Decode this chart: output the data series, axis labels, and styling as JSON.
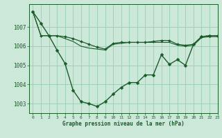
{
  "background_color": "#cce8d8",
  "grid_color": "#99ccb4",
  "line_color": "#1a5c2a",
  "xlabel": "Graphe pression niveau de la mer (hPa)",
  "xlim": [
    -0.5,
    23
  ],
  "ylim": [
    1002.5,
    1008.2
  ],
  "yticks": [
    1003,
    1004,
    1005,
    1006,
    1007
  ],
  "xticks": [
    0,
    1,
    2,
    3,
    4,
    5,
    6,
    7,
    8,
    9,
    10,
    11,
    12,
    13,
    14,
    15,
    16,
    17,
    18,
    19,
    20,
    21,
    22,
    23
  ],
  "series": [
    {
      "x": [
        0,
        1,
        2,
        3,
        4,
        5,
        6,
        7,
        8,
        9,
        10,
        11,
        12,
        13,
        14,
        15,
        16,
        17,
        18,
        19,
        20,
        21,
        22,
        23
      ],
      "y": [
        1007.8,
        1007.2,
        1006.55,
        1005.8,
        1005.1,
        1003.7,
        1003.1,
        1003.0,
        1002.85,
        1003.1,
        1003.5,
        1003.85,
        1004.1,
        1004.1,
        1004.5,
        1004.5,
        1005.55,
        1005.05,
        1005.3,
        1005.0,
        1006.1,
        1006.5,
        1006.55,
        1006.55
      ],
      "marker": "D",
      "markersize": 2.5,
      "linewidth": 1.0
    },
    {
      "x": [
        0,
        1,
        2,
        3,
        4,
        5,
        6,
        7,
        8,
        9,
        10,
        11,
        12,
        13,
        14,
        15,
        16,
        17,
        18,
        19,
        20,
        21,
        22,
        23
      ],
      "y": [
        1007.8,
        1006.55,
        1006.55,
        1006.55,
        1006.5,
        1006.4,
        1006.25,
        1006.1,
        1005.95,
        1005.85,
        1006.15,
        1006.2,
        1006.2,
        1006.2,
        1006.2,
        1006.25,
        1006.3,
        1006.3,
        1006.1,
        1006.05,
        1006.1,
        1006.5,
        1006.55,
        1006.55
      ],
      "marker": "D",
      "markersize": 2.0,
      "linewidth": 0.9
    },
    {
      "x": [
        0,
        1,
        2,
        3,
        4,
        5,
        6,
        7,
        8,
        9,
        10,
        11,
        12,
        13,
        14,
        15,
        16,
        17,
        18,
        19,
        20,
        21,
        22,
        23
      ],
      "y": [
        1007.8,
        1006.55,
        1006.55,
        1006.55,
        1006.4,
        1006.25,
        1006.0,
        1005.9,
        1005.85,
        1005.8,
        1006.1,
        1006.15,
        1006.2,
        1006.2,
        1006.2,
        1006.2,
        1006.2,
        1006.2,
        1006.05,
        1006.0,
        1006.05,
        1006.45,
        1006.5,
        1006.5
      ],
      "marker": null,
      "markersize": 0,
      "linewidth": 0.8
    }
  ]
}
